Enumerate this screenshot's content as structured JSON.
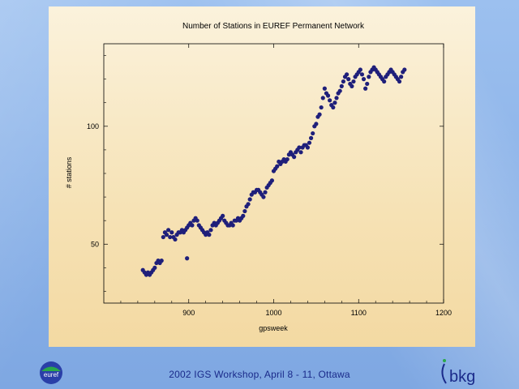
{
  "footer": {
    "text": "2002 IGS  Workshop, April 8 -  11, Ottawa"
  },
  "logos": {
    "left": "euref",
    "right": "bkg"
  },
  "colors": {
    "points": "#1f1f7a",
    "footer_text": "#1a2a8a"
  },
  "chart_data": {
    "type": "scatter",
    "title": "Number of Stations in EUREF Permanent Network",
    "xlabel": "gpsweek",
    "ylabel": "# stations",
    "xlim": [
      800,
      1200
    ],
    "ylim": [
      25,
      135
    ],
    "xticks": [
      900,
      1000,
      1100,
      1200
    ],
    "yticks": [
      50,
      100
    ],
    "grid": false,
    "series": [
      {
        "x": [
          846,
          848,
          850,
          852,
          854,
          856,
          858,
          860,
          862,
          864,
          866,
          868,
          870,
          872,
          874,
          876,
          878,
          880,
          882,
          884,
          886,
          888,
          890,
          892,
          894,
          896,
          898,
          900,
          902,
          904,
          906,
          908,
          910,
          912,
          914,
          916,
          918,
          920,
          922,
          924,
          926,
          928,
          930,
          932,
          934,
          936,
          938,
          940,
          942,
          944,
          946,
          948,
          950,
          952,
          954,
          956,
          958,
          960,
          962,
          964,
          966,
          968,
          970,
          972,
          974,
          976,
          978,
          980,
          982,
          984,
          986,
          988,
          990,
          992,
          994,
          996,
          998,
          1000,
          1002,
          1004,
          1006,
          1008,
          1010,
          1012,
          1014,
          1016,
          1018,
          1020,
          1022,
          1024,
          1026,
          1028,
          1030,
          1032,
          1034,
          1036,
          1038,
          1040,
          1042,
          1044,
          1046,
          1048,
          1050,
          1052,
          1054,
          1056,
          1058,
          1060,
          1062,
          1064,
          1066,
          1068,
          1070,
          1072,
          1074,
          1076,
          1078,
          1080,
          1082,
          1084,
          1086,
          1088,
          1090,
          1092,
          1094,
          1096,
          1098,
          1100,
          1102,
          1104,
          1106,
          1108,
          1110,
          1112,
          1114,
          1116,
          1118,
          1120,
          1122,
          1124,
          1126,
          1128,
          1130,
          1132,
          1134,
          1136,
          1138,
          1140,
          1142,
          1144,
          1146,
          1148,
          1150,
          1152,
          1154,
          898
        ],
        "y": [
          39,
          38,
          37,
          38,
          37,
          38,
          39,
          40,
          42,
          43,
          42,
          43,
          53,
          55,
          54,
          56,
          53,
          55,
          53,
          52,
          54,
          55,
          55,
          56,
          55,
          56,
          57,
          58,
          59,
          58,
          60,
          61,
          60,
          58,
          57,
          56,
          55,
          54,
          55,
          54,
          56,
          58,
          59,
          58,
          59,
          60,
          61,
          62,
          60,
          59,
          58,
          58,
          59,
          58,
          60,
          60,
          61,
          60,
          61,
          62,
          64,
          66,
          67,
          69,
          71,
          72,
          72,
          73,
          73,
          72,
          71,
          70,
          72,
          74,
          75,
          76,
          77,
          81,
          82,
          83,
          85,
          84,
          85,
          86,
          85,
          86,
          88,
          89,
          88,
          87,
          89,
          90,
          91,
          89,
          91,
          92,
          92,
          91,
          93,
          95,
          97,
          100,
          101,
          104,
          105,
          108,
          112,
          116,
          114,
          113,
          111,
          109,
          108,
          110,
          112,
          114,
          115,
          117,
          119,
          121,
          122,
          120,
          118,
          117,
          119,
          121,
          122,
          123,
          124,
          122,
          120,
          116,
          118,
          121,
          123,
          124,
          125,
          124,
          123,
          122,
          121,
          120,
          119,
          121,
          122,
          123,
          124,
          123,
          122,
          121,
          120,
          119,
          121,
          123,
          124,
          44
        ]
      }
    ]
  }
}
